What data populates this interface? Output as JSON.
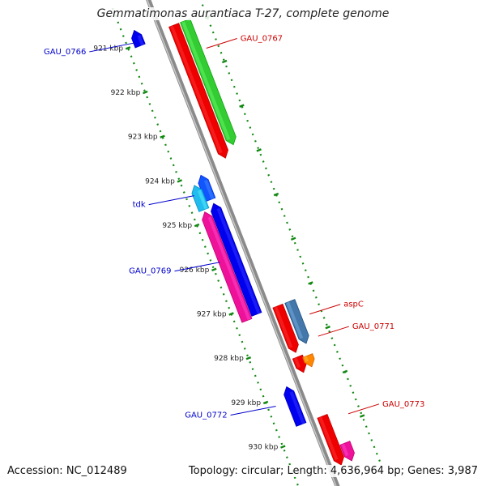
{
  "title": "Gemmatimonas aurantiaca T-27, complete genome",
  "footer": {
    "accession": "Accession: NC_012489",
    "topology": "Topology: circular; Length: 4,636,964 bp; Genes: 3,987"
  },
  "colors": {
    "backbone": "#8a8a8a",
    "tick": "#118811",
    "label_left": "#0000cc",
    "label_right": "#cc0000"
  },
  "scale": {
    "ticks": [
      {
        "label": "921 kbp"
      },
      {
        "label": "922 kbp"
      },
      {
        "label": "923 kbp"
      },
      {
        "label": "924 kbp"
      },
      {
        "label": "925 kbp"
      },
      {
        "label": "926 kbp"
      },
      {
        "label": "927 kbp"
      },
      {
        "label": "928 kbp"
      },
      {
        "label": "929 kbp"
      },
      {
        "label": "930 kbp"
      }
    ]
  },
  "genes": [
    {
      "name": "GAU_0766",
      "color": "#0000ee",
      "strand": "minus",
      "start_kbp": 920.7,
      "end_kbp": 921.05
    },
    {
      "name": "GAU_0767",
      "color": "#ee0000",
      "strand": "plus",
      "start_kbp": 920.9,
      "end_kbp": 923.9
    },
    {
      "name": "GAU_0767",
      "color": "#33cc33",
      "strand": "plus",
      "start_kbp": 920.9,
      "end_kbp": 923.7
    },
    {
      "name": "tdk",
      "color": "#1155ff",
      "strand": "minus",
      "start_kbp": 924.05,
      "end_kbp": 924.6
    },
    {
      "name": "tdk",
      "color": "#22bbee",
      "strand": "minus",
      "start_kbp": 924.2,
      "end_kbp": 924.75
    },
    {
      "name": "GAU_0769",
      "color": "#ee1199",
      "strand": "minus",
      "start_kbp": 924.8,
      "end_kbp": 927.25
    },
    {
      "name": "GAU_0769",
      "color": "#0000ee",
      "strand": "minus",
      "start_kbp": 924.7,
      "end_kbp": 927.2
    },
    {
      "name": "aspC",
      "color": "#ee0000",
      "strand": "plus",
      "start_kbp": 927.2,
      "end_kbp": 928.25
    },
    {
      "name": "aspC",
      "color": "#4477aa",
      "strand": "plus",
      "start_kbp": 927.2,
      "end_kbp": 928.15
    },
    {
      "name": "GAU_0771",
      "color": "#ee0000",
      "strand": "plus",
      "start_kbp": 928.35,
      "end_kbp": 928.7
    },
    {
      "name": "GAU_0771",
      "color": "#ff8800",
      "strand": "plus",
      "start_kbp": 928.4,
      "end_kbp": 928.65
    },
    {
      "name": "GAU_0772",
      "color": "#0000ee",
      "strand": "minus",
      "start_kbp": 928.85,
      "end_kbp": 929.7
    },
    {
      "name": "GAU_0773",
      "color": "#ee0000",
      "strand": "plus",
      "start_kbp": 929.7,
      "end_kbp": 930.8
    },
    {
      "name": "GAU_0773",
      "color": "#ee1199",
      "strand": "plus",
      "start_kbp": 930.4,
      "end_kbp": 930.8
    }
  ],
  "labels": [
    {
      "text": "GAU_0766",
      "side": "left",
      "color": "#0000cc",
      "kbp": 920.95
    },
    {
      "text": "GAU_0767",
      "side": "right",
      "color": "#cc0000",
      "kbp": 921.6
    },
    {
      "text": "tdk",
      "side": "left",
      "color": "#0000cc",
      "kbp": 924.4
    },
    {
      "text": "GAU_0769",
      "side": "left",
      "color": "#0000cc",
      "kbp": 925.9
    },
    {
      "text": "aspC",
      "side": "right",
      "color": "#cc0000",
      "kbp": 927.6
    },
    {
      "text": "GAU_0771",
      "side": "right",
      "color": "#cc0000",
      "kbp": 928.1
    },
    {
      "text": "GAU_0772",
      "side": "left",
      "color": "#0000cc",
      "kbp": 929.15
    },
    {
      "text": "GAU_0773",
      "side": "right",
      "color": "#cc0000",
      "kbp": 929.85
    }
  ]
}
